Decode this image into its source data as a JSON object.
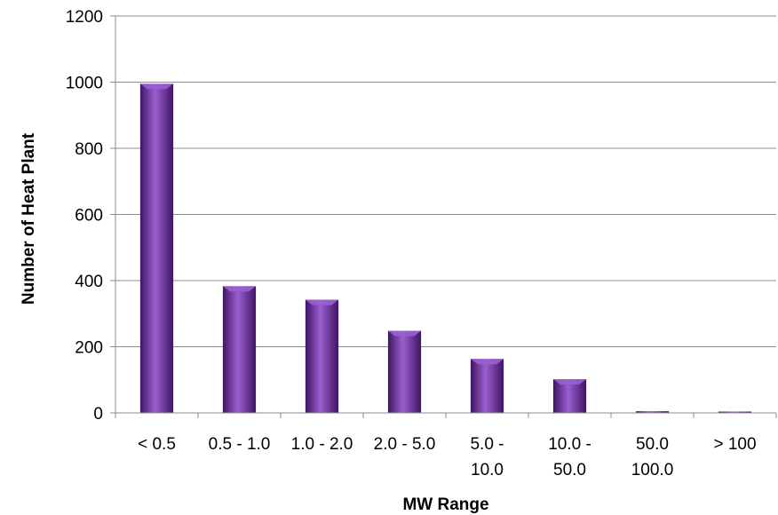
{
  "chart_data": {
    "type": "bar",
    "title": "",
    "xlabel": "MW Range",
    "ylabel": "Number of Heat Plant",
    "categories": [
      [
        "< 0.5"
      ],
      [
        "0.5 - 1.0"
      ],
      [
        "1.0 - 2.0"
      ],
      [
        "2.0 - 5.0"
      ],
      [
        "5.0 -",
        "10.0"
      ],
      [
        "10.0 -",
        "50.0"
      ],
      [
        "50.0",
        "100.0"
      ],
      [
        "> 100"
      ]
    ],
    "values": [
      995,
      383,
      342,
      248,
      163,
      102,
      5,
      4
    ],
    "ylim": [
      0,
      1200
    ],
    "yticks": [
      0,
      200,
      400,
      600,
      800,
      1000,
      1200
    ],
    "grid": true,
    "legend": "none",
    "colors": {
      "bar": "#6a2fa0",
      "bar_light": "#9b5fd0",
      "bar_dark": "#3e1463",
      "grid": "#8c8c8c",
      "axis": "#8c8c8c"
    }
  }
}
